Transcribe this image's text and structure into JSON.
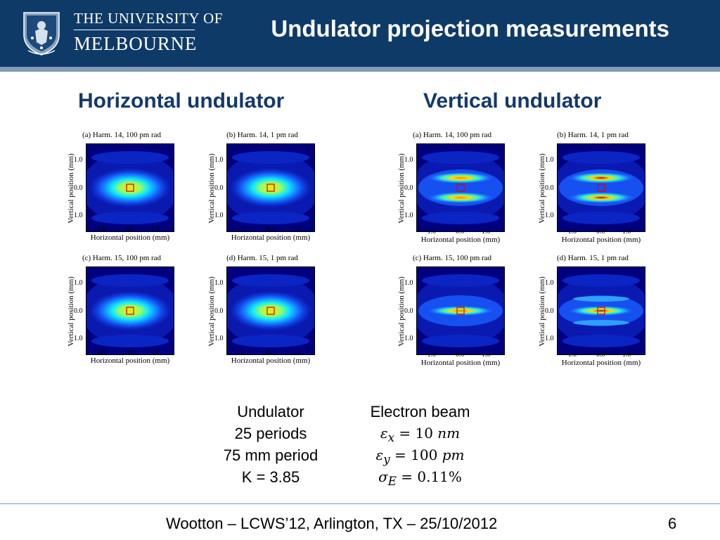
{
  "header": {
    "logo": {
      "line1": "THE UNIVERSITY OF",
      "line2": "MELBOURNE"
    },
    "title": "Undulator projection measurements",
    "bg_color": "#0e3a67",
    "stripe_color": "#7f9bb7"
  },
  "sections": {
    "horizontal": "Horizontal undulator",
    "vertical": "Vertical undulator"
  },
  "panels": {
    "h_a": {
      "caption": "(a) Harm. 14, 100 pm rad",
      "pattern": "single"
    },
    "h_b": {
      "caption": "(b) Harm. 14, 1 pm rad",
      "pattern": "single"
    },
    "h_c": {
      "caption": "(c) Harm. 15, 100 pm rad",
      "pattern": "single"
    },
    "h_d": {
      "caption": "(d) Harm. 15, 1 pm rad",
      "pattern": "single"
    },
    "v_a": {
      "caption": "(a) Harm. 14, 100 pm rad",
      "pattern": "double-faint"
    },
    "v_b": {
      "caption": "(b) Harm. 14, 1 pm rad",
      "pattern": "double-strong"
    },
    "v_c": {
      "caption": "(c) Harm. 15, 100 pm rad",
      "pattern": "center-faint"
    },
    "v_d": {
      "caption": "(d) Harm. 15, 1 pm rad",
      "pattern": "center-strong"
    }
  },
  "axes": {
    "ylabel": "Vertical position (mm)",
    "xlabel": "Horizontal position (mm)",
    "y_ticks": [
      "1.0",
      "0.0",
      "1.0"
    ],
    "x_ticks": [
      "−1.0",
      "0.0",
      "1.0"
    ]
  },
  "undulator": {
    "heading": "Undulator",
    "lines": [
      "25 periods",
      "75 mm period",
      "K = 3.85"
    ]
  },
  "electron_beam": {
    "heading": "Electron beam",
    "eps_x": {
      "symbol": "ε",
      "sub": "x",
      "value": "10",
      "unit": "nm"
    },
    "eps_y": {
      "symbol": "ε",
      "sub": "y",
      "value": "100",
      "unit": "pm"
    },
    "sigma_e": {
      "symbol": "σ",
      "sub": "E",
      "value": "0.11%"
    }
  },
  "footer": {
    "text": "Wootton – LCWS’12, Arlington, TX – 25/10/2012",
    "page": "6"
  }
}
